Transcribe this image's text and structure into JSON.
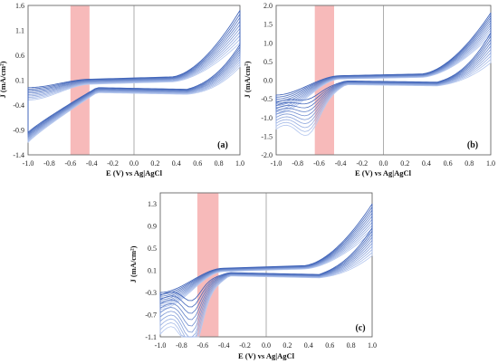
{
  "colors": {
    "band": "#f4a0a0",
    "curve_light": "#b7c9ef",
    "curve_dark": "#3f63b8",
    "frame": "#555555"
  },
  "chart_data": [
    {
      "type": "line",
      "panel_label": "(a)",
      "xlabel": "E (V) vs Ag|AgCl",
      "ylabel": "J (mA/cm²)",
      "xlim": [
        -1.0,
        1.0
      ],
      "ylim": [
        -1.4,
        1.6
      ],
      "x_ticks": [
        "-1.0",
        "-0.8",
        "-0.6",
        "-0.4",
        "-0.2",
        "0.0",
        "0.2",
        "0.4",
        "0.6",
        "0.8",
        "1.0"
      ],
      "y_ticks": [
        "-1.4",
        "-0.9",
        "-0.4",
        "0.1",
        "0.6",
        "1.1",
        "1.6"
      ],
      "highlight_band": [
        -0.6,
        -0.42
      ],
      "cycles": 10,
      "curve_shape": {
        "upper_start": [
          -0.3,
          -0.05
        ],
        "plateau_upper": [
          0.02,
          0.12
        ],
        "end_upper": [
          0.85,
          1.5
        ],
        "plateau_lower": [
          -0.15,
          -0.05
        ],
        "end_lower": [
          0.4,
          0.85
        ],
        "lower_start": [
          -1.15,
          -0.95
        ],
        "peak": [
          0.0,
          0.0,
          0.1
        ],
        "return_at_1": [
          0.2,
          0.9
        ],
        "return_knee": [
          0.1,
          0.3
        ]
      }
    },
    {
      "type": "line",
      "panel_label": "(b)",
      "xlabel": "E (V) vs Ag|AgCl",
      "ylabel": "J (mA/cm²)",
      "xlim": [
        -1.0,
        1.0
      ],
      "ylim": [
        -2.0,
        2.0
      ],
      "x_ticks": [
        "-1.0",
        "-0.8",
        "-0.6",
        "-0.4",
        "-0.2",
        "0.0",
        "0.2",
        "0.4",
        "0.6",
        "0.8",
        "1.0"
      ],
      "y_ticks": [
        "-2.0",
        "-1.5",
        "-1.0",
        "-0.5",
        "0.0",
        "0.5",
        "1.0",
        "1.5",
        "2.0"
      ],
      "highlight_band": [
        -0.64,
        -0.46
      ],
      "cycles": 10,
      "curve_shape": {
        "upper_start": [
          -0.9,
          -0.4
        ],
        "plateau_upper": [
          0.03,
          0.12
        ],
        "end_upper": [
          1.2,
          1.8
        ],
        "plateau_lower": [
          -0.12,
          -0.02
        ],
        "end_lower": [
          0.5,
          1.3
        ],
        "lower_start": [
          -1.3,
          -0.6
        ],
        "peak": [
          -0.75,
          -0.2,
          0.15
        ],
        "return_at_1": [
          0.5,
          1.3
        ],
        "return_knee": [
          0.2,
          0.4
        ]
      }
    },
    {
      "type": "line",
      "panel_label": "(c)",
      "xlabel": "E (V) vs Ag|AgCl",
      "ylabel": "J (mA/cm²)",
      "xlim": [
        -1.0,
        1.0
      ],
      "ylim": [
        -1.1,
        1.5
      ],
      "x_ticks": [
        "-1.0",
        "-0.8",
        "-0.6",
        "-0.4",
        "-0.2",
        "0.0",
        "0.2",
        "0.4",
        "0.6",
        "0.8",
        "1.0"
      ],
      "y_ticks": [
        "-1.1",
        "-0.7",
        "-0.3",
        "0.1",
        "0.5",
        "0.9",
        "1.3"
      ],
      "highlight_band": [
        -0.65,
        -0.45
      ],
      "cycles": 10,
      "curve_shape": {
        "upper_start": [
          -0.6,
          -0.3
        ],
        "plateau_upper": [
          0.08,
          0.14
        ],
        "end_upper": [
          0.8,
          1.3
        ],
        "plateau_lower": [
          0.0,
          0.06
        ],
        "end_lower": [
          0.4,
          0.9
        ],
        "lower_start": [
          -1.05,
          -0.35
        ],
        "peak": [
          -0.95,
          -0.3,
          0.12
        ],
        "return_at_1": [
          0.4,
          1.2
        ],
        "return_knee": [
          0.12,
          0.35
        ]
      }
    }
  ]
}
